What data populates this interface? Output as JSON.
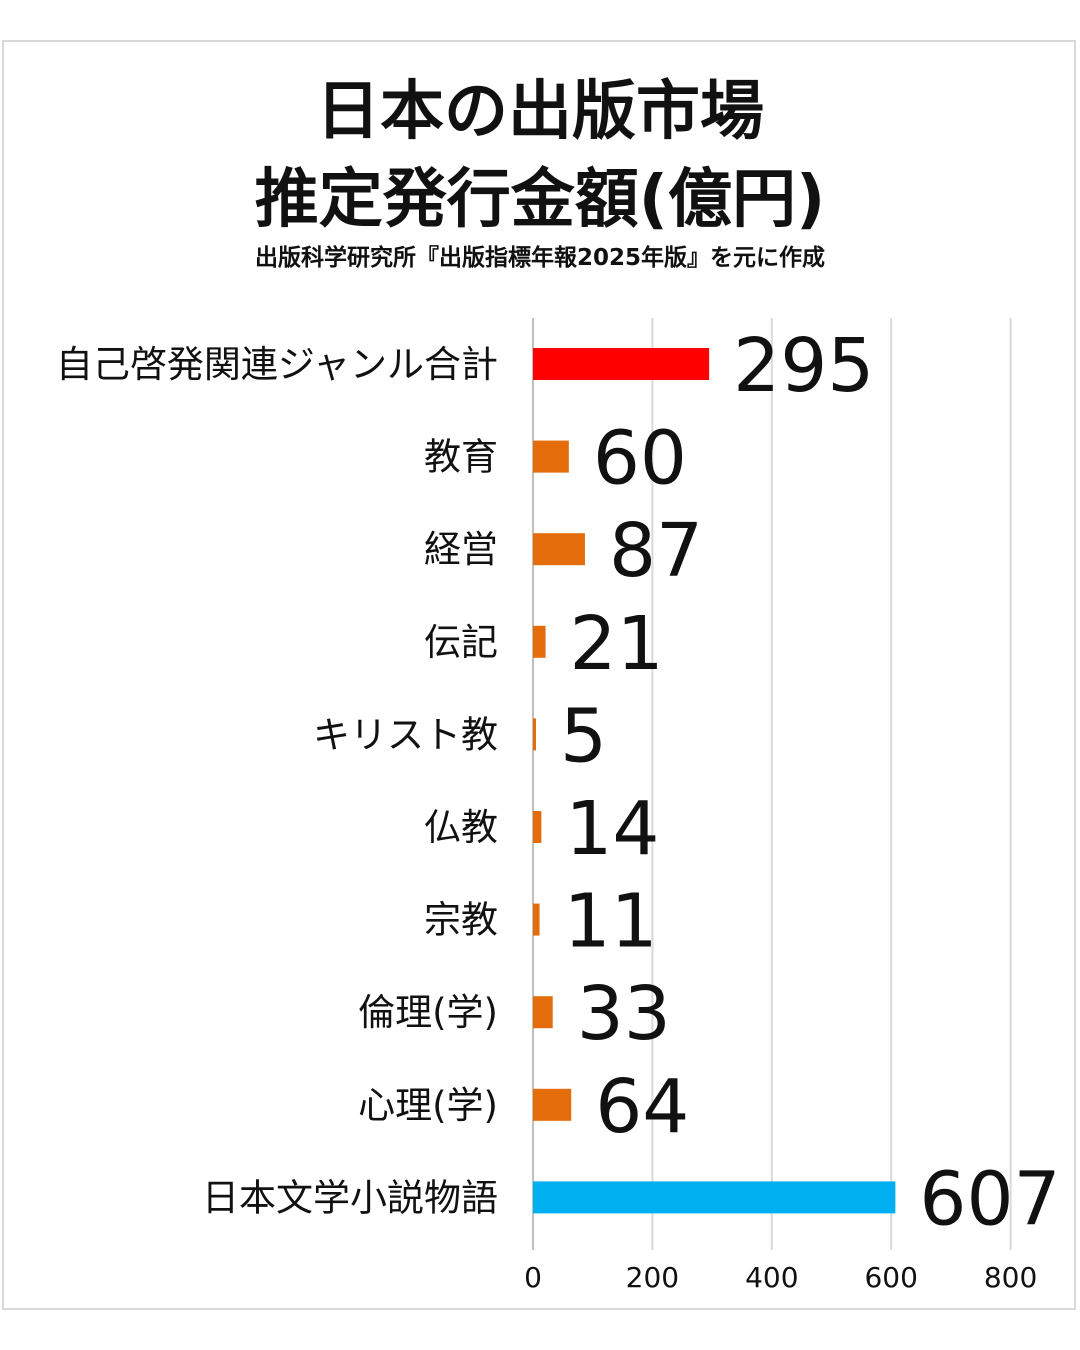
{
  "title": {
    "line1": "日本の出版市場",
    "line2": "推定発行金額(億円)",
    "source": "出版科学研究所『出版指標年報2025年版』を元に作成"
  },
  "colors": {
    "highlight_red": "#ff0000",
    "bar_orange": "#e46c0a",
    "highlight_blue": "#00b0f0",
    "grid": "#d9d9d9"
  },
  "chart_data": {
    "type": "bar",
    "orientation": "horizontal",
    "title": "日本の出版市場 推定発行金額(億円)",
    "categories": [
      "自己啓発関連ジャンル合計",
      "教育",
      "経営",
      "伝記",
      "キリスト教",
      "仏教",
      "宗教",
      "倫理(学)",
      "心理(学)",
      "日本文学小説物語"
    ],
    "values": [
      295,
      60,
      87,
      21,
      5,
      14,
      11,
      33,
      64,
      607
    ],
    "value_labels": [
      "295",
      "60",
      "87",
      "21",
      "5",
      "14",
      "11",
      "33",
      "64",
      "607"
    ],
    "bar_colors": [
      "#ff0000",
      "#e46c0a",
      "#e46c0a",
      "#e46c0a",
      "#e46c0a",
      "#e46c0a",
      "#e46c0a",
      "#e46c0a",
      "#e46c0a",
      "#00b0f0"
    ],
    "xlim": [
      0,
      800
    ],
    "xticks": [
      0,
      200,
      400,
      600,
      800
    ],
    "xtick_labels": [
      "0",
      "200",
      "400",
      "600",
      "800"
    ],
    "grid": true,
    "legend": "none"
  }
}
